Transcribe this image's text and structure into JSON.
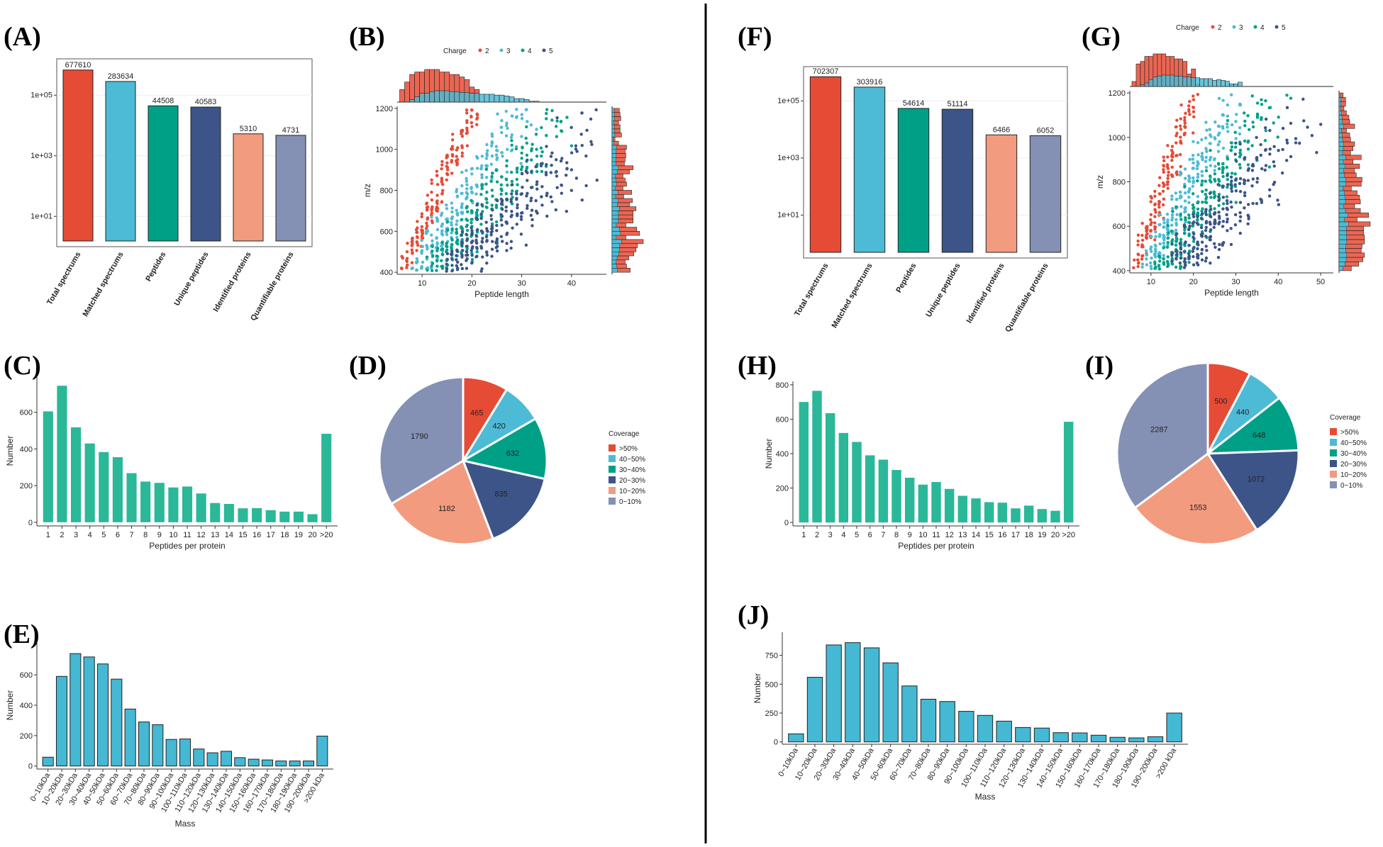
{
  "colors": {
    "red": "#e64b35",
    "cyan": "#4dbbd5",
    "teal": "#00a087",
    "navy": "#3c5488",
    "salmon": "#f39b7f",
    "slate": "#8491b4",
    "bar_green": "#2ab898",
    "bar_blue": "#45b8d4"
  },
  "panel_labels": {
    "A": "(A)",
    "B": "(B)",
    "C": "(C)",
    "D": "(D)",
    "E": "(E)",
    "F": "(F)",
    "G": "(G)",
    "H": "(H)",
    "I": "(I)",
    "J": "(J)"
  },
  "chart_data": [
    {
      "id": "A",
      "type": "bar",
      "yscale": "log10",
      "categories": [
        "Total spectrums",
        "Matched spectrums",
        "Peptides",
        "Unique peptides",
        "Identified proteins",
        "Quantifiable proteins"
      ],
      "values": [
        677610,
        283634,
        44508,
        40583,
        5310,
        4731
      ],
      "value_labels": [
        "677610",
        "283634",
        "44508",
        "40583",
        "5310",
        "4731"
      ],
      "ytick_labels": [
        "1e+01",
        "1e+03",
        "1e+05"
      ],
      "ylim_log10": [
        0,
        6.2
      ]
    },
    {
      "id": "B",
      "type": "scatter",
      "xlabel": "Peptide length",
      "ylabel": "m/z",
      "xlim": [
        5,
        47
      ],
      "ylim": [
        390,
        1210
      ],
      "xtick_labels": [
        "10",
        "20",
        "30",
        "40"
      ],
      "ytick_labels": [
        "400",
        "600",
        "800",
        "1000",
        "1200"
      ],
      "legend_title": "Charge",
      "legend_labels": [
        "2",
        "3",
        "4",
        "5"
      ],
      "series": [
        {
          "name": "2",
          "mz_per_residue": 55,
          "x_range": [
            6,
            21
          ]
        },
        {
          "name": "3",
          "mz_per_residue": 37,
          "x_range": [
            8,
            33
          ]
        },
        {
          "name": "4",
          "mz_per_residue": 28,
          "x_range": [
            11,
            42
          ]
        },
        {
          "name": "5",
          "mz_per_residue": 22,
          "x_range": [
            15,
            45
          ]
        }
      ]
    },
    {
      "id": "C",
      "type": "bar",
      "categories": [
        "1",
        "2",
        "3",
        "4",
        "5",
        "6",
        "7",
        "8",
        "9",
        "10",
        "11",
        "12",
        "13",
        "14",
        "15",
        "16",
        "17",
        "18",
        "19",
        "20",
        ">20"
      ],
      "values": [
        605,
        745,
        518,
        430,
        383,
        355,
        268,
        222,
        215,
        190,
        195,
        157,
        105,
        100,
        76,
        77,
        66,
        58,
        58,
        44,
        483
      ],
      "xlabel": "Peptides per protein",
      "ylabel": "Number",
      "ylim": [
        -20,
        800
      ],
      "ytick_labels": [
        "0",
        "200",
        "400",
        "600"
      ]
    },
    {
      "id": "D",
      "type": "pie",
      "legend_title": "Coverage",
      "labels": [
        ">50%",
        "40~50%",
        "30~40%",
        "20~30%",
        "10~20%",
        "0~10%"
      ],
      "values": [
        465,
        420,
        632,
        835,
        1182,
        1790
      ],
      "value_labels": [
        "465",
        "420",
        "632",
        "835",
        "1182",
        "1790"
      ]
    },
    {
      "id": "E",
      "type": "bar",
      "categories": [
        "0~10kDa",
        "10~20kDa",
        "20~30kDa",
        "30~40kDa",
        "40~50kDa",
        "50~60kDa",
        "60~70kDa",
        "70~80kDa",
        "80~90kDa",
        "90~100kDa",
        "100~110kDa",
        "110~120kDa",
        "120~130kDa",
        "130~140kDa",
        "140~150kDa",
        "150~160kDa",
        "160~170kDa",
        "170~180kDa",
        "180~190kDa",
        "190~200kDa",
        ">200 kDa"
      ],
      "values": [
        58,
        590,
        740,
        718,
        672,
        572,
        375,
        290,
        272,
        175,
        178,
        112,
        87,
        97,
        55,
        45,
        40,
        33,
        33,
        33,
        197
      ],
      "xlabel": "Mass",
      "ylabel": "Number",
      "ylim": [
        -20,
        820
      ],
      "ytick_labels": [
        "0",
        "200",
        "400",
        "600"
      ]
    },
    {
      "id": "F",
      "type": "bar",
      "yscale": "log10",
      "categories": [
        "Total spectrums",
        "Matched spectrums",
        "Peptides",
        "Unique peptides",
        "Identified proteins",
        "Quantifiable proteins"
      ],
      "values": [
        702307,
        303916,
        54614,
        51114,
        6466,
        6052
      ],
      "value_labels": [
        "702307",
        "303916",
        "54614",
        "51114",
        "6466",
        "6052"
      ],
      "ytick_labels": [
        "1e+01",
        "1e+03",
        "1e+05"
      ],
      "ylim_log10": [
        -0.5,
        6.2
      ]
    },
    {
      "id": "G",
      "type": "scatter",
      "xlabel": "Peptide length",
      "ylabel": "m/z",
      "xlim": [
        5,
        53
      ],
      "ylim": [
        390,
        1210
      ],
      "xtick_labels": [
        "10",
        "20",
        "30",
        "40",
        "50"
      ],
      "ytick_labels": [
        "400",
        "600",
        "800",
        "1000",
        "1200"
      ],
      "legend_title": "Charge",
      "legend_labels": [
        "2",
        "3",
        "4",
        "5"
      ],
      "series": [
        {
          "name": "2",
          "mz_per_residue": 55,
          "x_range": [
            6,
            21
          ]
        },
        {
          "name": "3",
          "mz_per_residue": 37,
          "x_range": [
            8,
            33
          ]
        },
        {
          "name": "4",
          "mz_per_residue": 28,
          "x_range": [
            11,
            44
          ]
        },
        {
          "name": "5",
          "mz_per_residue": 22,
          "x_range": [
            15,
            50
          ]
        }
      ]
    },
    {
      "id": "H",
      "type": "bar",
      "categories": [
        "1",
        "2",
        "3",
        "4",
        "5",
        "6",
        "7",
        "8",
        "9",
        "10",
        "11",
        "12",
        "13",
        "14",
        "15",
        "16",
        "17",
        "18",
        "19",
        "20",
        ">20"
      ],
      "values": [
        700,
        765,
        635,
        520,
        468,
        390,
        365,
        305,
        260,
        220,
        235,
        195,
        155,
        140,
        118,
        115,
        82,
        98,
        78,
        68,
        585
      ],
      "xlabel": "Peptides per protein",
      "ylabel": "Number",
      "ylim": [
        -20,
        820
      ],
      "ytick_labels": [
        "0",
        "200",
        "400",
        "600",
        "800"
      ]
    },
    {
      "id": "I",
      "type": "pie",
      "legend_title": "Coverage",
      "labels": [
        ">50%",
        "40~50%",
        "30~40%",
        "20~30%",
        "10~20%",
        "0~10%"
      ],
      "values": [
        500,
        440,
        648,
        1072,
        1553,
        2287
      ],
      "value_labels": [
        "500",
        "440",
        "648",
        "1072",
        "1553",
        "2287"
      ]
    },
    {
      "id": "J",
      "type": "bar",
      "categories": [
        "0~10kDa",
        "10~20kDa",
        "20~30kDa",
        "30~40kDa",
        "40~50kDa",
        "50~60kDa",
        "60~70kDa",
        "70~80kDa",
        "80~90kDa",
        "90~100kDa",
        "100~110kDa",
        "110~120kDa",
        "120~130kDa",
        "130~140kDa",
        "140~150kDa",
        "150~160kDa",
        "160~170kDa",
        "170~180kDa",
        "180~190kDa",
        "190~200kDa",
        ">200 kDa"
      ],
      "values": [
        70,
        560,
        840,
        860,
        815,
        685,
        485,
        370,
        350,
        265,
        230,
        180,
        125,
        120,
        80,
        78,
        58,
        40,
        35,
        45,
        250
      ],
      "xlabel": "Mass",
      "ylabel": "Number",
      "ylim": [
        -20,
        950
      ],
      "ytick_labels": [
        "0",
        "250",
        "500",
        "750"
      ]
    }
  ]
}
